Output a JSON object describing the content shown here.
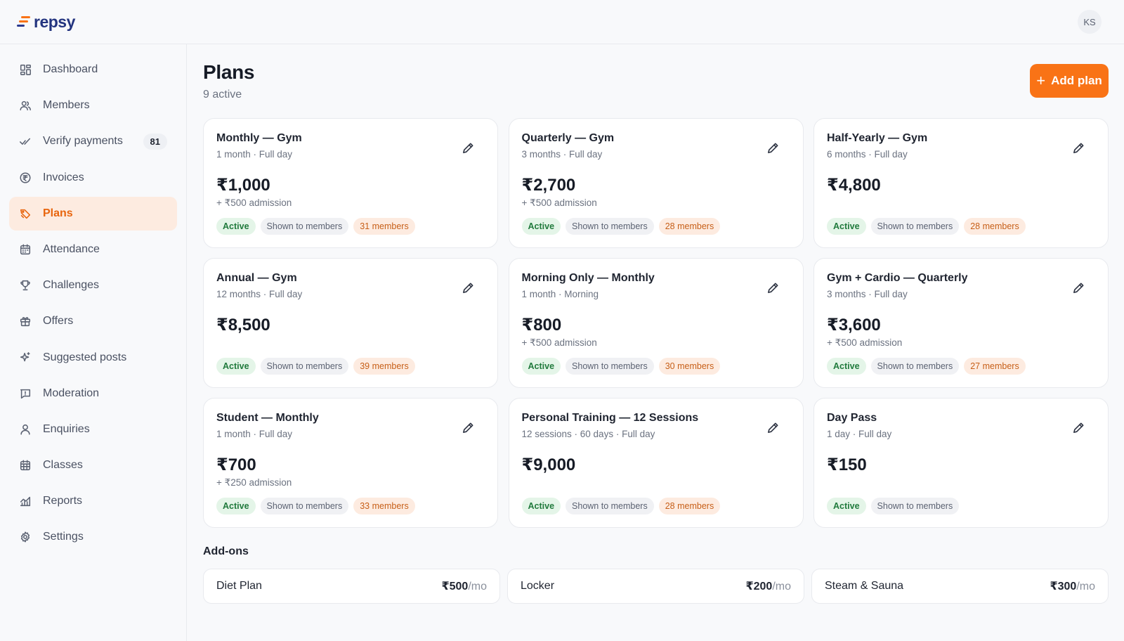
{
  "brand": {
    "name": "repsy"
  },
  "user": {
    "initials": "KS"
  },
  "sidebar": {
    "items": [
      {
        "label": "Dashboard",
        "icon": "dashboard-icon"
      },
      {
        "label": "Members",
        "icon": "members-icon"
      },
      {
        "label": "Verify payments",
        "icon": "check-icon",
        "count": "81"
      },
      {
        "label": "Invoices",
        "icon": "rupee-coin-icon"
      },
      {
        "label": "Plans",
        "icon": "plans-icon",
        "active": true
      },
      {
        "label": "Attendance",
        "icon": "calendar-icon"
      },
      {
        "label": "Challenges",
        "icon": "trophy-icon"
      },
      {
        "label": "Offers",
        "icon": "gift-icon"
      },
      {
        "label": "Suggested posts",
        "icon": "sparkle-icon"
      },
      {
        "label": "Moderation",
        "icon": "flag-message-icon"
      },
      {
        "label": "Enquiries",
        "icon": "person-icon"
      },
      {
        "label": "Classes",
        "icon": "calendar-grid-icon"
      },
      {
        "label": "Reports",
        "icon": "chart-icon"
      },
      {
        "label": "Settings",
        "icon": "gear-icon"
      }
    ]
  },
  "main": {
    "title": "Plans",
    "subtitle": "9 active",
    "add_button": "Add plan",
    "plans": [
      {
        "name": "Monthly — Gym",
        "meta": "1 month · Full day",
        "price": "₹1,000",
        "admission": "+ ₹500 admission",
        "status": "Active",
        "visibility": "Shown to members",
        "members": "31 members"
      },
      {
        "name": "Quarterly — Gym",
        "meta": "3 months · Full day",
        "price": "₹2,700",
        "admission": "+ ₹500 admission",
        "status": "Active",
        "visibility": "Shown to members",
        "members": "28 members"
      },
      {
        "name": "Half-Yearly — Gym",
        "meta": "6 months · Full day",
        "price": "₹4,800",
        "admission": "",
        "status": "Active",
        "visibility": "Shown to members",
        "members": "28 members"
      },
      {
        "name": "Annual — Gym",
        "meta": "12 months · Full day",
        "price": "₹8,500",
        "admission": "",
        "status": "Active",
        "visibility": "Shown to members",
        "members": "39 members"
      },
      {
        "name": "Morning Only — Monthly",
        "meta": "1 month · Morning",
        "price": "₹800",
        "admission": "+ ₹500 admission",
        "status": "Active",
        "visibility": "Shown to members",
        "members": "30 members"
      },
      {
        "name": "Gym + Cardio — Quarterly",
        "meta": "3 months · Full day",
        "price": "₹3,600",
        "admission": "+ ₹500 admission",
        "status": "Active",
        "visibility": "Shown to members",
        "members": "27 members"
      },
      {
        "name": "Student — Monthly",
        "meta": "1 month · Full day",
        "price": "₹700",
        "admission": "+ ₹250 admission",
        "status": "Active",
        "visibility": "Shown to members",
        "members": "33 members"
      },
      {
        "name": "Personal Training — 12 Sessions",
        "meta": "12 sessions · 60 days · Full day",
        "price": "₹9,000",
        "admission": "",
        "status": "Active",
        "visibility": "Shown to members",
        "members": "28 members"
      },
      {
        "name": "Day Pass",
        "meta": "1 day · Full day",
        "price": "₹150",
        "admission": "",
        "status": "Active",
        "visibility": "Shown to members",
        "members": ""
      }
    ],
    "addons_title": "Add-ons",
    "addons": [
      {
        "name": "Diet Plan",
        "price": "₹500",
        "unit": "/mo"
      },
      {
        "name": "Locker",
        "price": "₹200",
        "unit": "/mo"
      },
      {
        "name": "Steam & Sauna",
        "price": "₹300",
        "unit": "/mo"
      }
    ]
  },
  "colors": {
    "accent": "#f97316",
    "brand": "#23347f",
    "active_badge": "#207a3c"
  }
}
